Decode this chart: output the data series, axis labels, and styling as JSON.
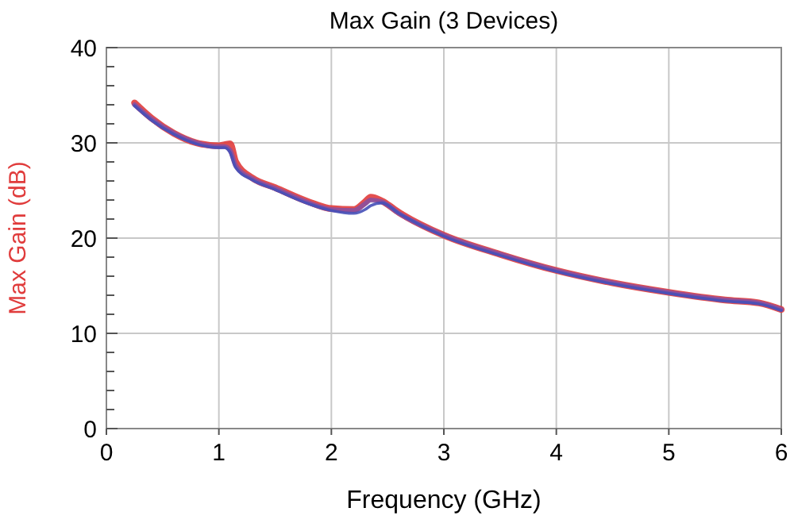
{
  "chart_data": {
    "type": "line",
    "title": "Max Gain (3 Devices)",
    "xlabel": "Frequency (GHz)",
    "ylabel": "Max Gain (dB)",
    "x": [
      0.25,
      0.4,
      0.6,
      0.8,
      1.0,
      1.05,
      1.1,
      1.15,
      1.3,
      1.5,
      1.8,
      2.0,
      2.2,
      2.3,
      2.35,
      2.45,
      2.6,
      3.0,
      3.5,
      4.0,
      4.5,
      5.0,
      5.5,
      5.8,
      6.0
    ],
    "series": [
      {
        "color": "#e03c3c",
        "values": [
          34.2,
          32.6,
          31.0,
          30.0,
          29.7,
          29.8,
          29.9,
          28.0,
          26.3,
          25.3,
          23.8,
          23.1,
          23.0,
          23.8,
          24.3,
          23.9,
          22.7,
          20.3,
          18.3,
          16.6,
          15.3,
          14.3,
          13.5,
          13.2,
          12.5
        ]
      },
      {
        "color": "#8a4f9e",
        "values": [
          34.0,
          32.5,
          31.0,
          30.0,
          29.6,
          29.6,
          29.2,
          27.6,
          26.2,
          25.2,
          23.7,
          23.0,
          22.9,
          23.6,
          24.0,
          23.8,
          22.6,
          20.3,
          18.3,
          16.6,
          15.3,
          14.3,
          13.5,
          13.2,
          12.5
        ]
      },
      {
        "color": "#4650b8",
        "values": [
          33.9,
          32.4,
          30.9,
          29.9,
          29.5,
          29.5,
          29.0,
          27.4,
          26.1,
          25.1,
          23.6,
          22.9,
          22.6,
          23.0,
          23.4,
          23.7,
          22.6,
          20.2,
          18.2,
          16.5,
          15.2,
          14.2,
          13.4,
          13.1,
          12.4
        ]
      }
    ],
    "xlim": [
      0,
      6
    ],
    "xticks": [
      0,
      1,
      2,
      3,
      4,
      5,
      6
    ],
    "ylim": [
      0,
      40
    ],
    "yticks": [
      0,
      {
        "value": 2,
        "label": null
      },
      {
        "value": 4,
        "label": null
      },
      {
        "value": 6,
        "label": null
      },
      {
        "value": 8,
        "label": null
      },
      10,
      {
        "value": 12,
        "label": null
      },
      {
        "value": 14,
        "label": null
      },
      {
        "value": 16,
        "label": null
      },
      {
        "value": 18,
        "label": null
      },
      20,
      {
        "value": 22,
        "label": null
      },
      {
        "value": 24,
        "label": null
      },
      {
        "value": 26,
        "label": null
      },
      {
        "value": 28,
        "label": null
      },
      30,
      {
        "value": 32,
        "label": null
      },
      {
        "value": 34,
        "label": null
      },
      {
        "value": 36,
        "label": null
      },
      {
        "value": 38,
        "label": null
      },
      40
    ],
    "grid": true,
    "marker": "none",
    "line_style": "solid"
  }
}
